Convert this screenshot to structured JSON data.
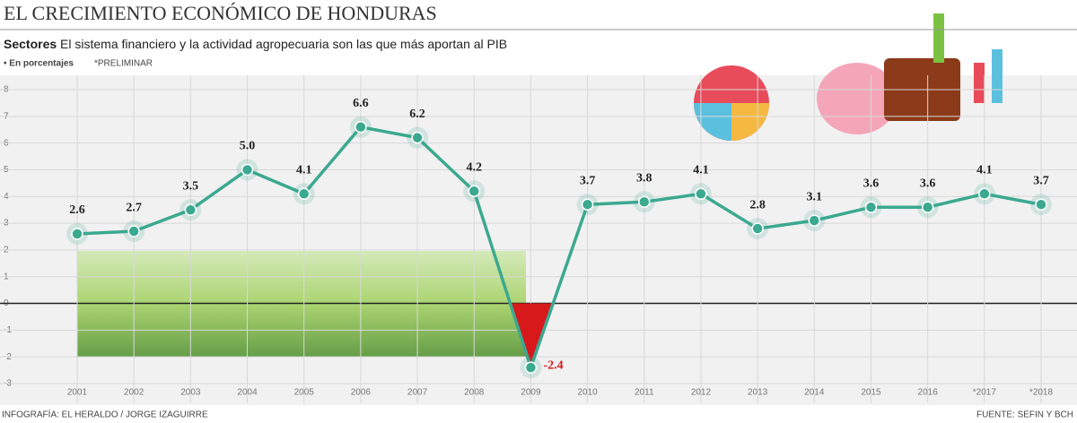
{
  "chart_data": {
    "type": "line",
    "title": "EL CRECIMIENTO ECONÓMICO DE HONDURAS",
    "subtitle_label": "Sectores",
    "subtitle": "El sistema financiero y la actividad agropecuaria son las que más aportan al PIB",
    "unit_note": "• En porcentajes",
    "preliminary_note": "*PRELIMINAR",
    "credit": "INFOGRAFÍA: EL HERALDO / JORGE IZAGUIRRE",
    "source": "FUENTE: SEFIN Y BCH",
    "categories": [
      "2001",
      "2002",
      "2003",
      "2004",
      "2005",
      "2006",
      "2007",
      "2008",
      "2009",
      "2010",
      "2011",
      "2012",
      "2013",
      "2014",
      "2015",
      "2016",
      "*2017",
      "*2018"
    ],
    "values": [
      2.6,
      2.7,
      3.5,
      5.0,
      4.1,
      6.6,
      6.2,
      4.2,
      -2.4,
      3.7,
      3.8,
      4.1,
      2.8,
      3.1,
      3.6,
      3.6,
      4.1,
      3.7
    ],
    "value_labels": [
      "2.6",
      "2.7",
      "3.5",
      "5.0",
      "4.1",
      "6.6",
      "6.2",
      "4.2",
      "-2.4",
      "3.7",
      "3.8",
      "4.1",
      "2.8",
      "3.1",
      "3.6",
      "3.6",
      "4.1",
      "3.7"
    ],
    "color": "#3ba98f",
    "negative_color": "#d7191c",
    "ylim": [
      -3,
      8
    ],
    "yticks": [
      -3,
      -2,
      -1,
      0,
      1,
      2,
      3,
      4,
      5,
      6,
      7,
      8
    ],
    "grid": true
  }
}
